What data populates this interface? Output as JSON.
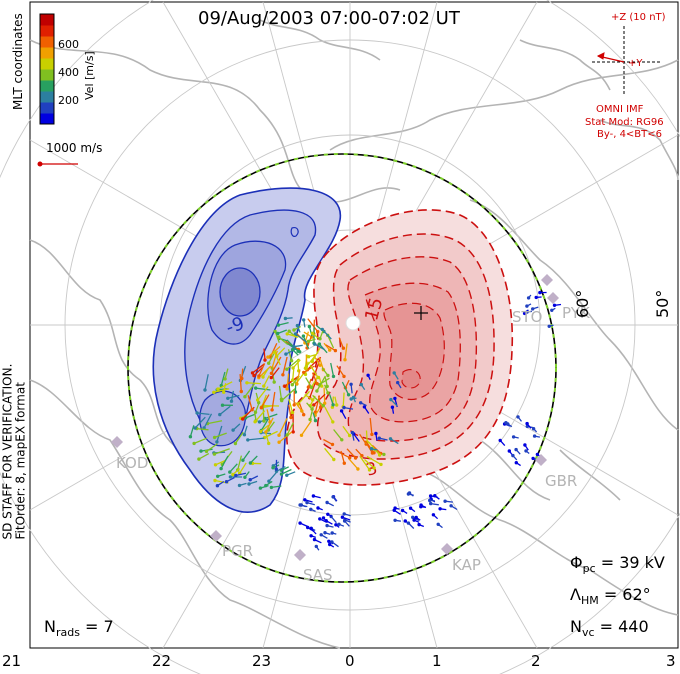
{
  "title": "09/Aug/2003 07:00-07:02 UT",
  "coordinates_label": "MLT coordinates",
  "velocity_scale": {
    "unit_label": "Vel [m/s]",
    "ticks": [
      "600",
      "400",
      "200"
    ],
    "colors": [
      "#0000e0",
      "#2040c0",
      "#2c7fa0",
      "#28a060",
      "#80c020",
      "#c8d000",
      "#f0a000",
      "#f06000",
      "#e02000",
      "#c00000"
    ]
  },
  "reference_vector": "1000 m/s",
  "notes": {
    "line1": "NOTE: FOR PREVIEW PURPOSES ONLY. PLEASE CONTACT VT-SD STAFF FOR VERIFICATION.",
    "line2": "FitOrder: 8, mapEX format"
  },
  "imf": {
    "z_label": "+Z (10 nT)",
    "y_label": "+Y",
    "source": "OMNI IMF",
    "stat_mod": "Stat Mod: RG96",
    "condition": "By-, 4<BT<6"
  },
  "contour_labels": {
    "negative": "-9",
    "positive": "15",
    "positive_low": "3"
  },
  "latitude_labels": [
    "60°",
    "50°"
  ],
  "radars": [
    "KOD",
    "PGR",
    "SAS",
    "KAP",
    "GBR",
    "STO",
    "PYK"
  ],
  "stats": {
    "phi_pc": {
      "symbol": "Φ",
      "subscript": "pc",
      "value": "= 39 kV"
    },
    "lambda_hm": {
      "symbol": "Λ",
      "subscript": "HM",
      "value": "= 62°"
    },
    "n_vc": {
      "symbol": "N",
      "subscript": "vc",
      "value": "= 440"
    },
    "n_rads": {
      "symbol": "N",
      "subscript": "rads",
      "value": "= 7"
    }
  },
  "mlt_ticks": [
    "21",
    "22",
    "23",
    "0",
    "1",
    "2",
    "3"
  ]
}
